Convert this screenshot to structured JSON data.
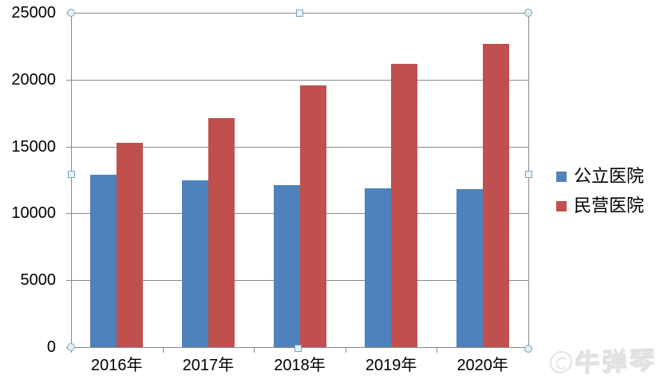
{
  "chart_data": {
    "type": "bar",
    "title": "",
    "xlabel": "",
    "ylabel": "",
    "categories": [
      "2016年",
      "2017年",
      "2018年",
      "2019年",
      "2020年"
    ],
    "series": [
      {
        "name": "公立医院",
        "color": "#4F81BD",
        "values": [
          12900,
          12500,
          12100,
          11900,
          11800
        ]
      },
      {
        "name": "民营医院",
        "color": "#C0504D",
        "values": [
          15300,
          17100,
          19600,
          21200,
          22700
        ]
      }
    ],
    "ylim": [
      0,
      25000
    ],
    "ytick_step": 5000,
    "ytick_labels": [
      "0",
      "5000",
      "10000",
      "15000",
      "20000",
      "25000"
    ],
    "grid": true,
    "gridline_color": "#8a8a8a",
    "axis_text_color": "#000000",
    "legend_position": "right",
    "plot_selected": true
  },
  "watermark": {
    "text": "牛弹琴"
  }
}
